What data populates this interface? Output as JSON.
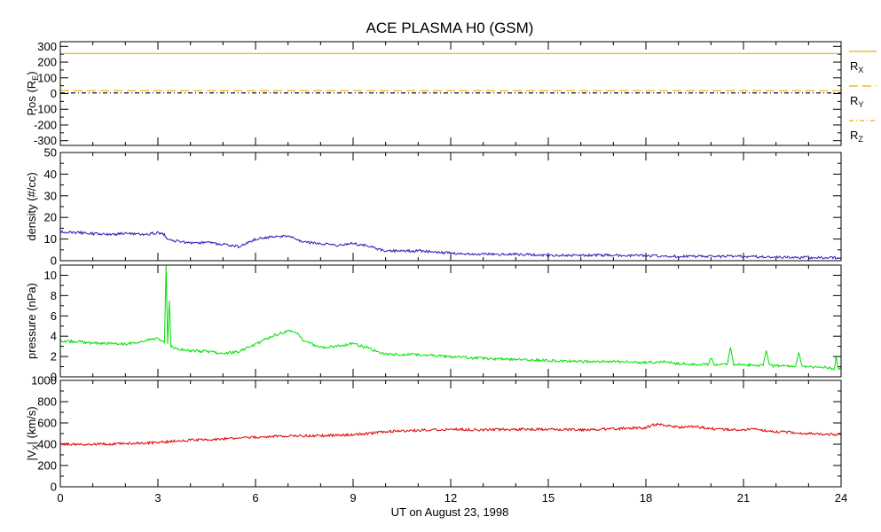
{
  "chart_data": [
    {
      "type": "line",
      "title": "ACE PLASMA H0 (GSM)",
      "ylabel": "Pos (R",
      "ylabel_sub": "E",
      "ylabel_tail": ")",
      "ylim": [
        -330,
        330
      ],
      "yticks": [
        300,
        200,
        100,
        0,
        -100,
        -200,
        -300
      ],
      "xlim": [
        0,
        24
      ],
      "series": [
        {
          "name": "R",
          "sub": "X",
          "style": "solid",
          "color": "#f2a900",
          "x": [
            0,
            24
          ],
          "values": [
            255,
            255
          ]
        },
        {
          "name": "R",
          "sub": "Y",
          "style": "dashed",
          "color": "#f2a900",
          "x": [
            0,
            24
          ],
          "values": [
            18,
            18
          ]
        },
        {
          "name": "R",
          "sub": "Z",
          "style": "dashdot",
          "color": "#000000",
          "x": [
            0,
            24
          ],
          "values": [
            4,
            4
          ]
        }
      ]
    },
    {
      "type": "line",
      "ylabel": "density (#/cc)",
      "ylim": [
        0,
        50
      ],
      "yticks": [
        50,
        40,
        30,
        20,
        10,
        0
      ],
      "xlim": [
        0,
        24
      ],
      "series": [
        {
          "color": "#2a1fb5",
          "x": [
            0,
            0.5,
            1,
            1.5,
            2,
            2.5,
            3,
            3.2,
            3.3,
            3.6,
            4,
            4.5,
            5,
            5.5,
            6,
            6.5,
            7,
            7.5,
            8,
            8.5,
            9,
            9.5,
            10,
            11,
            12,
            13,
            14,
            15,
            16,
            17,
            18,
            19,
            20,
            21,
            22,
            23,
            24
          ],
          "values": [
            13.5,
            13,
            12.5,
            12,
            12.5,
            12,
            13,
            12,
            9.5,
            9,
            8,
            8.5,
            7.5,
            6.5,
            10,
            11,
            11.5,
            8.5,
            8,
            7,
            8,
            6.5,
            4.5,
            4.5,
            3.5,
            3,
            3,
            2.5,
            2.5,
            2.5,
            2.3,
            2,
            2,
            2,
            1.5,
            1.5,
            1.3
          ]
        }
      ]
    },
    {
      "type": "line",
      "ylabel": "pressure (nPa)",
      "ylim": [
        0,
        11
      ],
      "yticks": [
        10,
        8,
        6,
        4,
        2,
        0
      ],
      "xlim": [
        0,
        24
      ],
      "series": [
        {
          "color": "#00e000",
          "x": [
            0,
            0.5,
            1,
            1.5,
            2,
            2.5,
            3,
            3.2,
            3.25,
            3.3,
            3.35,
            3.4,
            3.8,
            4.5,
            5,
            5.5,
            6,
            6.5,
            7,
            7.3,
            7.5,
            8,
            8.5,
            9,
            9.5,
            10,
            11,
            12,
            13,
            14,
            15,
            16,
            17,
            18,
            18.5,
            19,
            19.9,
            20,
            20.1,
            20.5,
            20.6,
            20.7,
            21,
            21.6,
            21.7,
            21.8,
            22,
            22.6,
            22.7,
            22.8,
            23,
            23.5,
            23.8,
            23.85,
            23.9,
            24
          ],
          "values": [
            3.5,
            3.5,
            3.3,
            3.3,
            3.2,
            3.5,
            3.8,
            3.3,
            11,
            3.2,
            7.5,
            3.0,
            2.6,
            2.5,
            2.3,
            2.5,
            3.2,
            4.0,
            4.5,
            4.2,
            3.5,
            2.9,
            3.0,
            3.3,
            2.8,
            2.2,
            2.2,
            2.0,
            1.8,
            1.7,
            1.6,
            1.5,
            1.5,
            1.4,
            1.5,
            1.3,
            1.2,
            1.9,
            1.2,
            1.2,
            2.9,
            1.2,
            1.2,
            1.1,
            2.6,
            1.1,
            1.1,
            1.0,
            2.4,
            1.0,
            1.0,
            0.9,
            0.8,
            2.1,
            0.8,
            0.8
          ]
        }
      ]
    },
    {
      "type": "line",
      "ylabel": "|V",
      "ylabel_sub": "X",
      "ylabel_tail": "| (km/s)",
      "ylim": [
        0,
        1000
      ],
      "yticks": [
        1000,
        800,
        600,
        400,
        200,
        0
      ],
      "xlim": [
        0,
        24
      ],
      "xticks": [
        0,
        3,
        6,
        9,
        12,
        15,
        18,
        21,
        24
      ],
      "xlabel": "UT on August 23, 1998",
      "series": [
        {
          "color": "#e00000",
          "x": [
            0,
            1,
            2,
            3,
            3.5,
            4,
            5,
            6,
            7,
            8,
            9,
            9.5,
            10,
            11,
            12,
            13,
            14,
            15,
            16,
            17,
            18,
            18.3,
            18.6,
            19,
            19.5,
            20,
            20.5,
            21,
            21.3,
            21.6,
            22,
            23,
            24
          ],
          "values": [
            400,
            400,
            405,
            415,
            430,
            440,
            450,
            465,
            480,
            480,
            490,
            500,
            520,
            530,
            540,
            535,
            540,
            540,
            535,
            545,
            555,
            590,
            575,
            560,
            565,
            545,
            540,
            530,
            550,
            530,
            520,
            500,
            490
          ]
        }
      ]
    }
  ]
}
